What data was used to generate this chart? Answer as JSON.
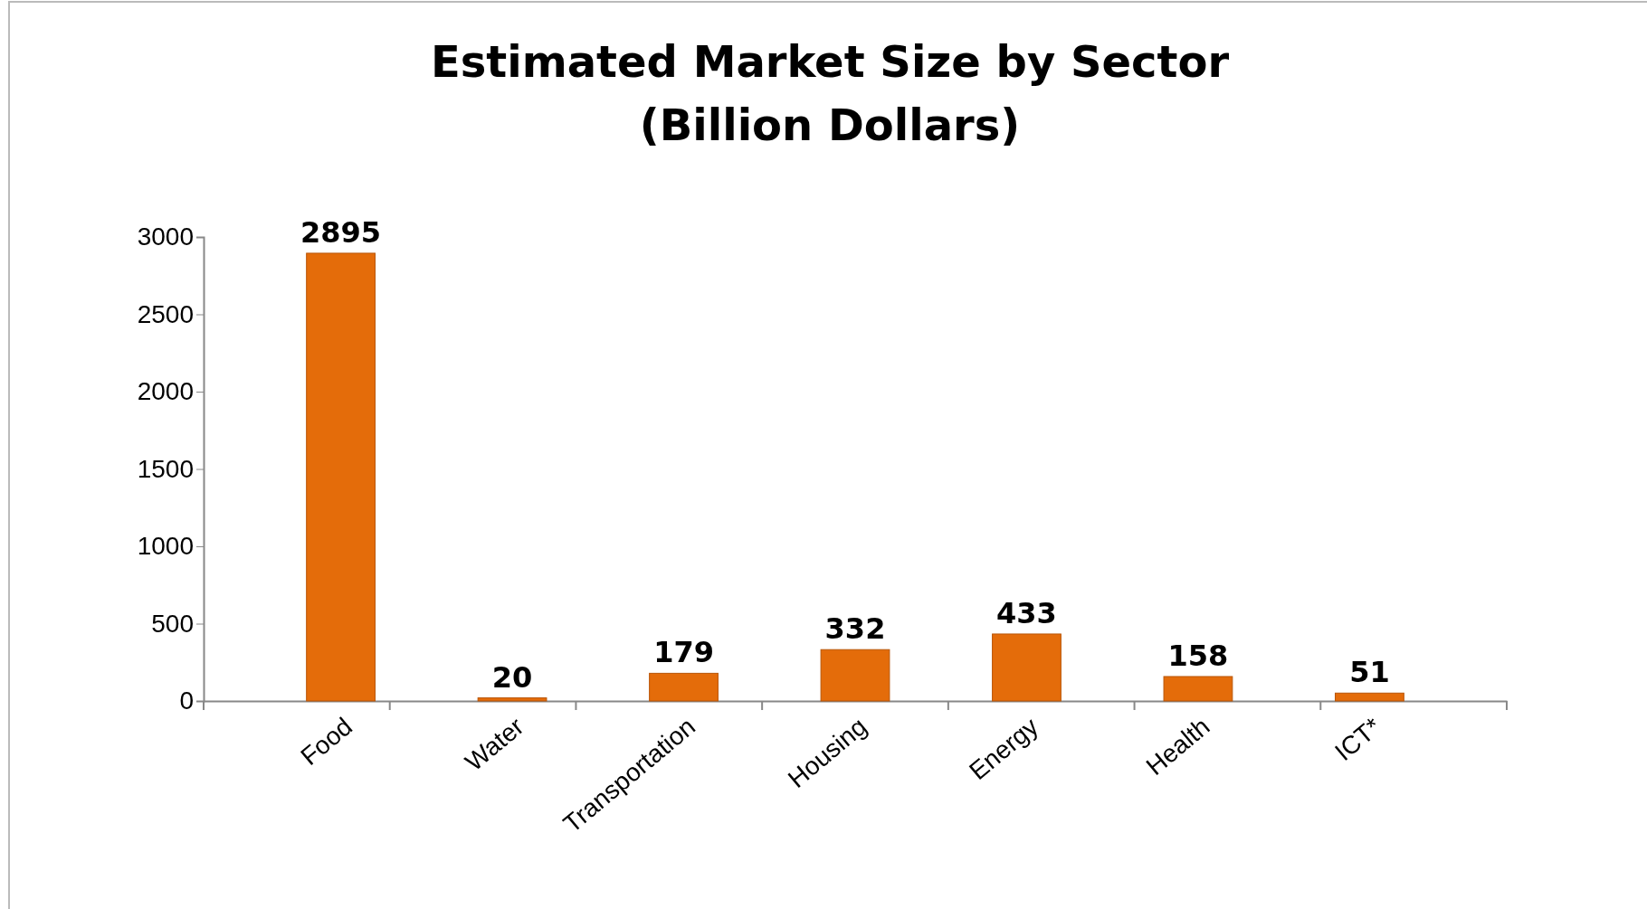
{
  "chart_data": {
    "type": "bar",
    "title": "Estimated Market Size by Sector\n(Billion Dollars)",
    "categories": [
      "Food",
      "Water",
      "Transportation",
      "Housing",
      "Energy",
      "Health",
      "ICT*"
    ],
    "values": [
      2895,
      20,
      179,
      332,
      433,
      158,
      51
    ],
    "color": "#e46c0a",
    "ylim": [
      0,
      3000
    ],
    "yticks": [
      0,
      500,
      1000,
      1500,
      2000,
      2500,
      3000
    ],
    "data_labels": true
  }
}
